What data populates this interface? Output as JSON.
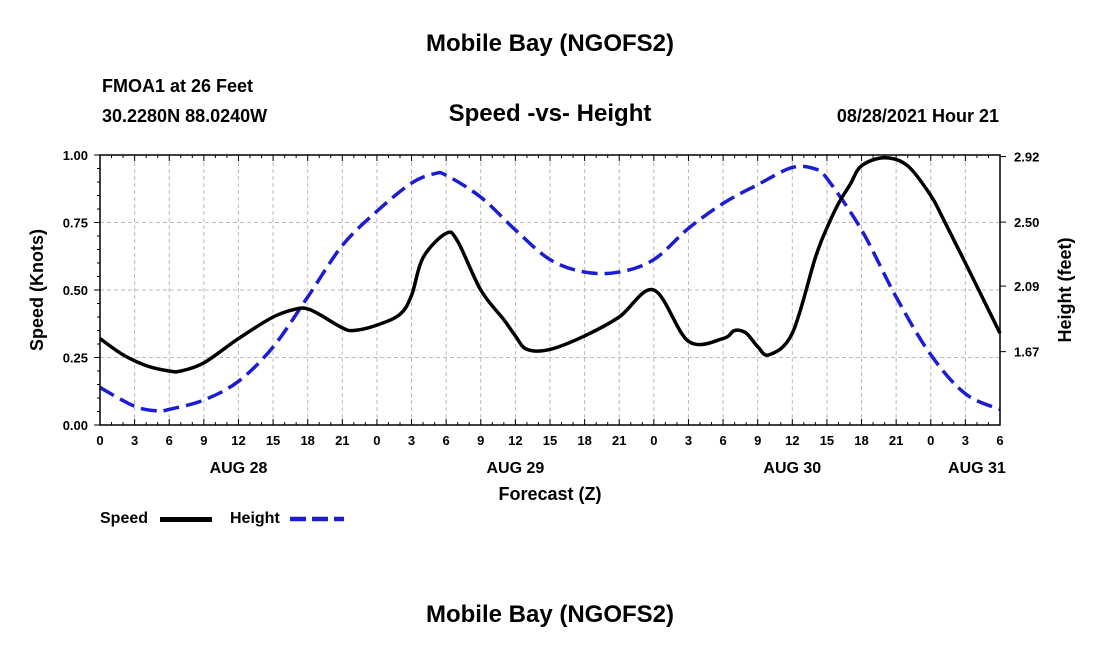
{
  "header": {
    "title_top": "Mobile Bay (NGOFS2)",
    "title_bottom": "Mobile Bay (NGOFS2)",
    "station": "FMOA1 at 26 Feet",
    "coords": "30.2280N  88.0240W",
    "subtitle": "Speed -vs- Height",
    "datetime": "08/28/2021 Hour 21"
  },
  "legend": {
    "speed_label": "Speed",
    "height_label": "Height"
  },
  "colors": {
    "speed": "#000000",
    "height": "#1c1cd0",
    "grid": "#bbbbbb"
  },
  "chart_data": {
    "type": "line",
    "xlabel": "Forecast (Z)",
    "ylabel_left": "Speed (Knots)",
    "ylabel_right": "Height (feet)",
    "x_unit": "hours from 00Z AUG 28",
    "xlim": [
      0,
      78
    ],
    "ylim_left": [
      0,
      1
    ],
    "ylim_right": [
      1.2,
      2.93
    ],
    "grid": true,
    "legend_position": "bottom-left",
    "x_ticks": [
      0,
      3,
      6,
      9,
      12,
      15,
      18,
      21,
      24,
      27,
      30,
      33,
      36,
      39,
      42,
      45,
      48,
      51,
      54,
      57,
      60,
      63,
      66,
      69,
      72,
      75,
      78
    ],
    "x_tick_labels": [
      "0",
      "3",
      "6",
      "9",
      "12",
      "15",
      "18",
      "21",
      "0",
      "3",
      "6",
      "9",
      "12",
      "15",
      "18",
      "21",
      "0",
      "3",
      "6",
      "9",
      "12",
      "15",
      "18",
      "21",
      "0",
      "3",
      "6"
    ],
    "date_labels": [
      {
        "x": 12,
        "label": "AUG 28"
      },
      {
        "x": 36,
        "label": "AUG 29"
      },
      {
        "x": 60,
        "label": "AUG 30"
      },
      {
        "x": 76,
        "label": "AUG 31"
      }
    ],
    "y_left_ticks": [
      0,
      0.25,
      0.5,
      0.75,
      1.0
    ],
    "y_left_tick_labels": [
      "0.00",
      "0.25",
      "0.50",
      "0.75",
      "1.00"
    ],
    "y_right_ticks": [
      1.67,
      2.09,
      2.5,
      2.92
    ],
    "y_right_tick_labels": [
      "1.67",
      "2.09",
      "2.50",
      "2.92"
    ],
    "series": [
      {
        "name": "Speed",
        "axis": "left",
        "x": [
          0,
          2,
          4,
          6,
          7,
          9,
          12,
          15,
          17,
          18,
          19,
          21,
          22,
          24,
          26,
          27,
          28,
          30,
          31,
          33,
          35,
          36,
          37,
          39,
          42,
          45,
          48,
          51,
          54,
          55,
          56,
          57,
          58,
          60,
          62,
          63,
          64,
          65,
          66,
          68,
          70,
          72,
          73,
          75,
          78
        ],
        "y": [
          0.32,
          0.26,
          0.22,
          0.2,
          0.2,
          0.23,
          0.32,
          0.4,
          0.43,
          0.43,
          0.41,
          0.36,
          0.35,
          0.37,
          0.41,
          0.48,
          0.62,
          0.71,
          0.68,
          0.5,
          0.39,
          0.33,
          0.28,
          0.28,
          0.33,
          0.4,
          0.5,
          0.31,
          0.32,
          0.35,
          0.34,
          0.29,
          0.26,
          0.34,
          0.62,
          0.73,
          0.82,
          0.89,
          0.96,
          0.99,
          0.96,
          0.85,
          0.77,
          0.6,
          0.34
        ]
      },
      {
        "name": "Height",
        "axis": "right",
        "x": [
          0,
          3,
          5,
          6,
          9,
          12,
          15,
          18,
          21,
          24,
          27,
          29,
          30,
          33,
          36,
          39,
          42,
          45,
          48,
          51,
          54,
          57,
          60,
          62,
          63,
          66,
          69,
          72,
          75,
          78
        ],
        "y": [
          1.44,
          1.32,
          1.29,
          1.3,
          1.36,
          1.48,
          1.7,
          2.02,
          2.35,
          2.57,
          2.75,
          2.81,
          2.8,
          2.66,
          2.45,
          2.26,
          2.18,
          2.18,
          2.26,
          2.46,
          2.62,
          2.74,
          2.85,
          2.84,
          2.78,
          2.45,
          2.02,
          1.65,
          1.4,
          1.3
        ]
      }
    ]
  }
}
